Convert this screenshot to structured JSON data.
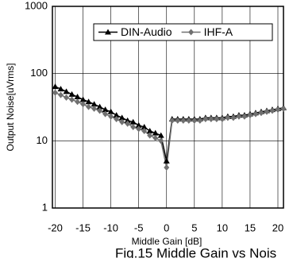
{
  "chart_data": {
    "type": "line",
    "title": "Fig.15 Middle Gain vs Nois",
    "x_label": "Middle Gain [dB]",
    "y_label": "Output Noise[uVrms]",
    "x": [
      -20,
      -19,
      -18,
      -17,
      -16,
      -15,
      -14,
      -13,
      -12,
      -11,
      -10,
      -9,
      -8,
      -7,
      -6,
      -5,
      -4,
      -3,
      -2,
      -1,
      0,
      1,
      2,
      3,
      4,
      5,
      6,
      7,
      8,
      9,
      10,
      11,
      12,
      13,
      14,
      15,
      16,
      17,
      18,
      19,
      20,
      21
    ],
    "series": [
      {
        "name": "DIN-Audio",
        "color": "#000000",
        "marker": "triangle",
        "values": [
          64,
          59,
          54,
          49,
          45,
          41,
          38,
          35,
          32,
          29,
          27,
          24,
          22,
          20,
          19,
          17,
          16,
          14,
          13,
          12,
          5,
          21,
          21,
          21,
          21,
          21,
          21,
          22,
          22,
          22,
          22,
          23,
          23,
          24,
          24,
          25,
          26,
          27,
          28,
          29,
          30,
          31
        ]
      },
      {
        "name": "IHF-A",
        "color": "#707070",
        "marker": "diamond",
        "values": [
          52,
          48,
          44,
          41,
          38,
          35,
          32,
          30,
          28,
          25,
          23,
          21,
          19,
          18,
          16,
          15,
          14,
          12,
          11,
          10,
          4,
          20,
          20,
          20,
          20,
          20,
          20,
          21,
          21,
          21,
          21,
          22,
          22,
          23,
          23,
          24,
          25,
          26,
          27,
          28,
          29,
          30
        ]
      }
    ],
    "xlim": [
      -20.5,
      21
    ],
    "xticks": [
      -20,
      -15,
      -10,
      -5,
      0,
      5,
      10,
      15,
      20
    ],
    "ylim": [
      1,
      1000
    ],
    "yticks": [
      1,
      10,
      100,
      1000
    ],
    "log_y": true,
    "grid": true,
    "legend": "top"
  }
}
